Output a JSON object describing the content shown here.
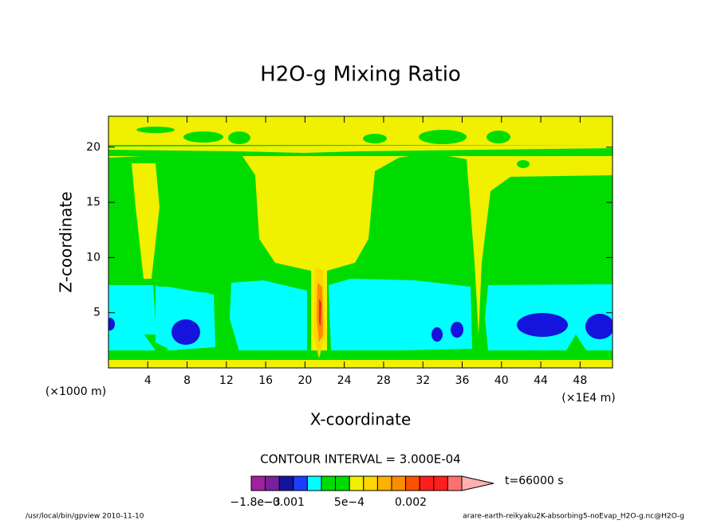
{
  "chart_data": {
    "type": "contour",
    "title": "H2O-g Mixing Ratio",
    "x_label": "X-coordinate",
    "y_label": "Z-coordinate",
    "x_unit": "(×1E4 m)",
    "y_unit": "(×1000 m)",
    "xlim": [
      0,
      51.3
    ],
    "ylim": [
      0,
      22.8
    ],
    "xticks": [
      4,
      8,
      12,
      16,
      20,
      24,
      28,
      32,
      36,
      40,
      44,
      48
    ],
    "yticks": [
      5,
      10,
      15,
      20
    ],
    "contour_interval": "CONTOUR INTERVAL = 3.000E-04",
    "colorbar": {
      "colors": [
        "#a020a0",
        "#7a1fa0",
        "#1414a0",
        "#1e3cff",
        "#00ffff",
        "#00dc00",
        "#00dc00",
        "#f0f000",
        "#ffd700",
        "#ffb000",
        "#ff8c00",
        "#ff5000",
        "#ff1e1e",
        "#ff1e1e",
        "#ff7070",
        "#ffb0b0"
      ],
      "labels": [
        "−1.8e−3",
        "−0.001",
        "5e−4",
        "0.002"
      ],
      "time": "t=66000 s"
    },
    "footer_left": "/usr/local/bin/gpview  2010-11-10",
    "footer_right": "arare-earth-reikyaku2K-absorbing5-noEvap_H2O-g.nc@H2O-g"
  }
}
